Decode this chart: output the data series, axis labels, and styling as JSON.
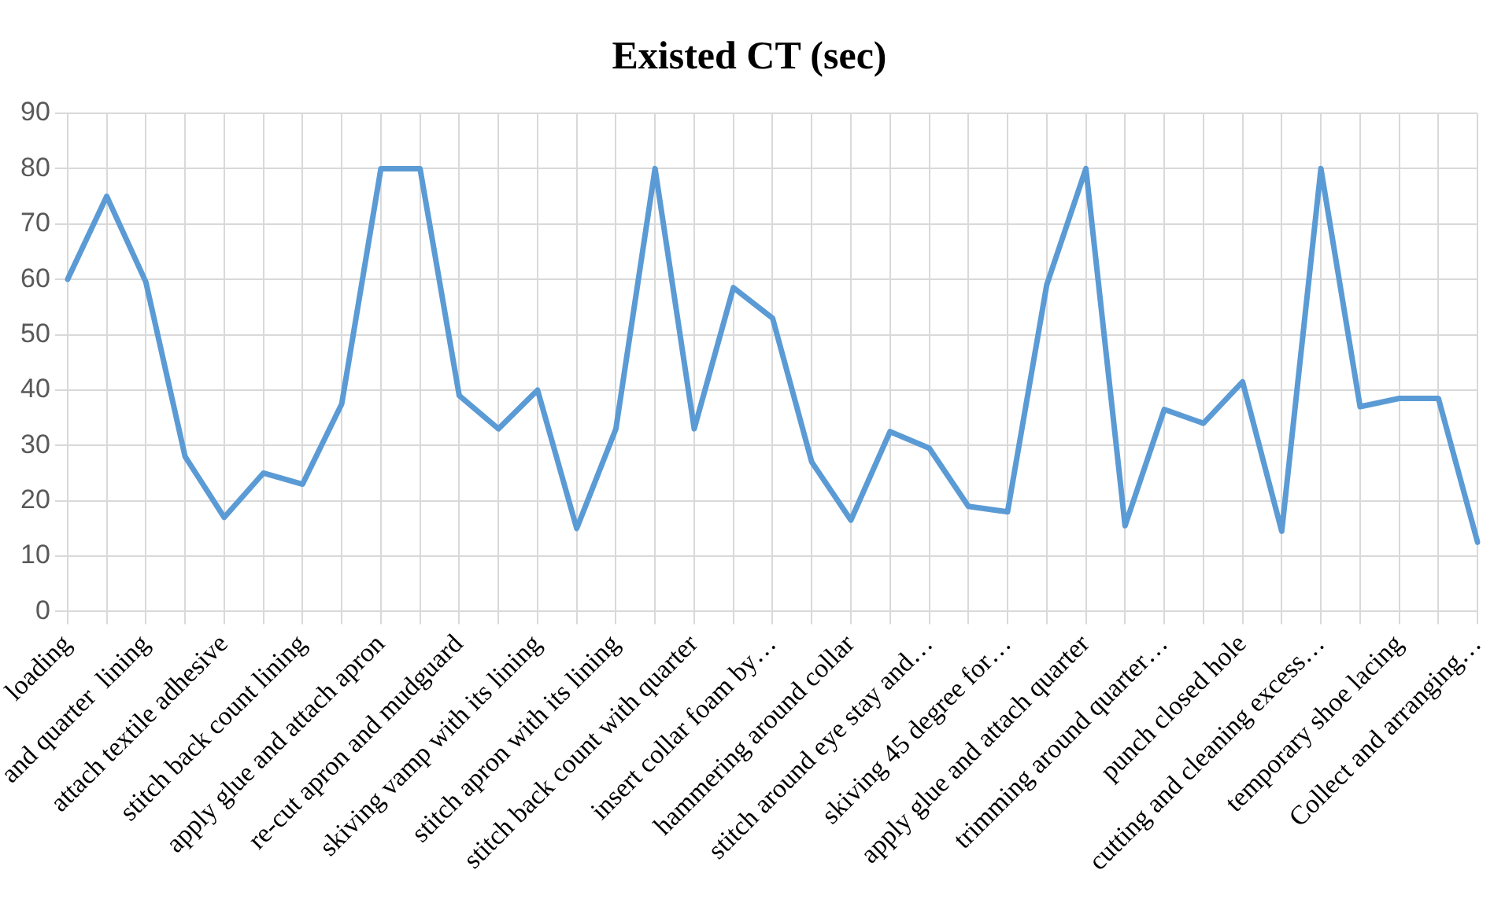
{
  "chart_data": {
    "type": "line",
    "title": "Existed CT (sec)",
    "categories": [
      "loading",
      null,
      "and quarter  lining",
      null,
      "attach textile adhesive",
      null,
      "stitch back count lining",
      null,
      "apply glue and attach apron",
      null,
      "re-cut apron and mudguard",
      null,
      "skiving vamp with its lining",
      null,
      "stitch apron with its lining",
      null,
      "stitch back count with quarter",
      null,
      "insert collar foam by…",
      null,
      "hammering around collar",
      null,
      "stitch around eye stay and…",
      null,
      "skiving 45 degree for…",
      null,
      "apply glue and attach quarter",
      null,
      "trimming around quarter…",
      null,
      "punch closed hole",
      null,
      "cutting and cleaning excess…",
      null,
      "temporary shoe lacing",
      null,
      "Collect and arranging…"
    ],
    "series": [
      {
        "color": "#5b9bd5",
        "values": [
          60,
          75,
          59.5,
          28,
          17,
          25,
          23,
          37.5,
          80,
          80,
          39,
          33,
          40,
          15,
          33,
          80,
          33,
          58.5,
          53,
          27,
          16.5,
          32.5,
          29.5,
          19,
          18,
          59,
          80,
          15.5,
          36.5,
          34,
          41.5,
          14.5,
          80,
          37,
          38.5,
          38.5,
          12.5
        ]
      }
    ],
    "ylim": [
      0,
      90
    ],
    "yticks": [
      0,
      10,
      20,
      30,
      40,
      50,
      60,
      70,
      80,
      90
    ],
    "grid": true,
    "legend": false,
    "marker": "none",
    "line_style": "solid"
  }
}
